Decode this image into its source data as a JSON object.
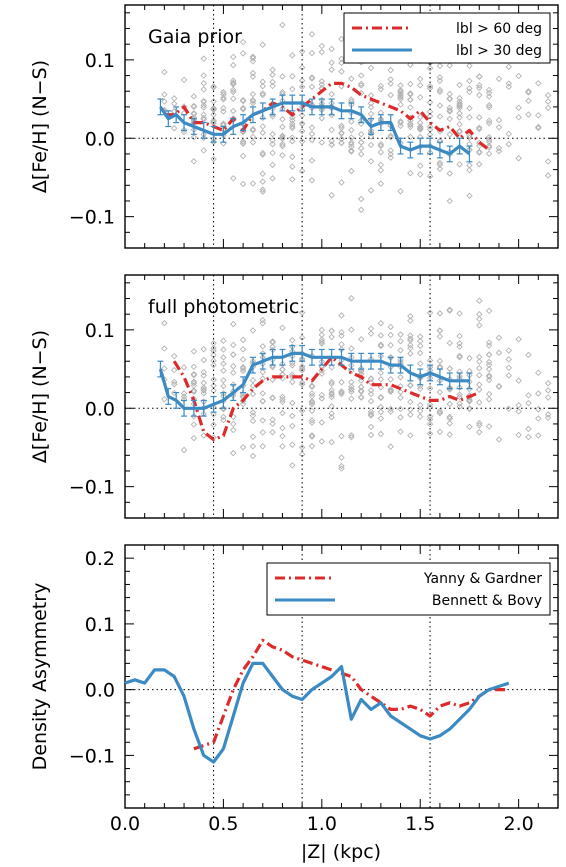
{
  "colors": {
    "red": "#dd2b2b",
    "blue": "#3b8ac4",
    "gray": "#b3b3b3",
    "black": "#000000"
  },
  "xaxis": {
    "label": "|Z| (kpc)",
    "lim": [
      0.0,
      2.2
    ],
    "ticks": [
      "0.0",
      "0.5",
      "1.0",
      "1.5",
      "2.0"
    ],
    "tick_values": [
      0.0,
      0.5,
      1.0,
      1.5,
      2.0
    ]
  },
  "vlines": [
    0.45,
    0.9,
    1.55
  ],
  "chart_data": [
    {
      "type": "line",
      "title": "",
      "label": "Gaia prior",
      "xlabel": "|Z| (kpc)",
      "ylabel": "Δ[Fe/H] (N−S)",
      "xlim": [
        0.0,
        2.2
      ],
      "ylim": [
        -0.14,
        0.17
      ],
      "yticks": [
        "0.1",
        "0.0",
        "−0.1"
      ],
      "ytick_values": [
        0.1,
        0.0,
        -0.1
      ],
      "legend": {
        "placement": "top-right",
        "entries": [
          "lbl > 60 deg",
          "lbl > 30 deg"
        ]
      },
      "series": [
        {
          "name": "lbl > 60 deg",
          "style": "dashdot",
          "color": "red",
          "x": [
            0.2,
            0.25,
            0.3,
            0.35,
            0.4,
            0.45,
            0.5,
            0.55,
            0.6,
            0.65,
            0.7,
            0.75,
            0.8,
            0.85,
            0.9,
            0.95,
            1.0,
            1.05,
            1.1,
            1.15,
            1.2,
            1.25,
            1.3,
            1.35,
            1.4,
            1.45,
            1.5,
            1.55,
            1.6,
            1.65,
            1.7,
            1.75,
            1.8,
            1.85
          ],
          "y": [
            0.03,
            0.03,
            0.04,
            0.02,
            0.02,
            0.015,
            0.01,
            0.025,
            0.01,
            0.03,
            0.035,
            0.045,
            0.04,
            0.03,
            0.04,
            0.05,
            0.06,
            0.07,
            0.07,
            0.065,
            0.055,
            0.05,
            0.045,
            0.04,
            0.035,
            0.025,
            0.035,
            0.02,
            0.01,
            0.015,
            0.0,
            0.01,
            -0.005,
            -0.015
          ]
        },
        {
          "name": "lbl > 30 deg",
          "style": "solid",
          "color": "blue",
          "x": [
            0.18,
            0.22,
            0.26,
            0.3,
            0.35,
            0.4,
            0.45,
            0.5,
            0.55,
            0.6,
            0.65,
            0.7,
            0.75,
            0.8,
            0.85,
            0.9,
            0.95,
            1.0,
            1.05,
            1.1,
            1.15,
            1.2,
            1.25,
            1.3,
            1.35,
            1.4,
            1.45,
            1.5,
            1.55,
            1.6,
            1.65,
            1.7,
            1.75
          ],
          "y": [
            0.04,
            0.025,
            0.03,
            0.02,
            0.015,
            0.01,
            0.005,
            0.005,
            0.015,
            0.02,
            0.03,
            0.035,
            0.04,
            0.045,
            0.045,
            0.045,
            0.04,
            0.04,
            0.04,
            0.035,
            0.035,
            0.03,
            0.015,
            0.02,
            0.02,
            -0.01,
            -0.015,
            -0.01,
            -0.01,
            -0.015,
            -0.02,
            -0.01,
            -0.02
          ],
          "error": 0.01
        }
      ]
    },
    {
      "type": "line",
      "title": "",
      "label": "full photometric",
      "xlabel": "|Z| (kpc)",
      "ylabel": "Δ[Fe/H] (N−S)",
      "xlim": [
        0.0,
        2.2
      ],
      "ylim": [
        -0.14,
        0.17
      ],
      "yticks": [
        "0.1",
        "0.0",
        "−0.1"
      ],
      "ytick_values": [
        0.1,
        0.0,
        -0.1
      ],
      "series": [
        {
          "name": "lbl > 60 deg",
          "style": "dashdot",
          "color": "red",
          "x": [
            0.25,
            0.3,
            0.35,
            0.4,
            0.45,
            0.5,
            0.55,
            0.6,
            0.65,
            0.7,
            0.75,
            0.8,
            0.85,
            0.9,
            0.95,
            1.0,
            1.05,
            1.1,
            1.15,
            1.2,
            1.25,
            1.3,
            1.35,
            1.4,
            1.45,
            1.5,
            1.55,
            1.6,
            1.65,
            1.7,
            1.75,
            1.8
          ],
          "y": [
            0.06,
            0.04,
            0.01,
            -0.03,
            -0.04,
            -0.035,
            0.0,
            0.01,
            0.025,
            0.035,
            0.04,
            0.04,
            0.04,
            0.04,
            0.035,
            0.05,
            0.065,
            0.055,
            0.045,
            0.04,
            0.03,
            0.03,
            0.03,
            0.025,
            0.02,
            0.015,
            0.01,
            0.01,
            0.015,
            0.01,
            0.015,
            0.02
          ]
        },
        {
          "name": "lbl > 30 deg",
          "style": "solid",
          "color": "blue",
          "x": [
            0.18,
            0.22,
            0.26,
            0.3,
            0.35,
            0.4,
            0.45,
            0.5,
            0.55,
            0.6,
            0.65,
            0.7,
            0.75,
            0.8,
            0.85,
            0.9,
            0.95,
            1.0,
            1.05,
            1.1,
            1.15,
            1.2,
            1.25,
            1.3,
            1.35,
            1.4,
            1.45,
            1.5,
            1.55,
            1.6,
            1.65,
            1.7,
            1.75
          ],
          "y": [
            0.05,
            0.015,
            0.01,
            0.0,
            0.0,
            0.0,
            0.005,
            0.01,
            0.02,
            0.03,
            0.055,
            0.06,
            0.065,
            0.065,
            0.07,
            0.07,
            0.065,
            0.065,
            0.065,
            0.065,
            0.06,
            0.06,
            0.06,
            0.06,
            0.055,
            0.055,
            0.045,
            0.04,
            0.045,
            0.04,
            0.035,
            0.035,
            0.035
          ],
          "error": 0.01
        }
      ]
    },
    {
      "type": "line",
      "title": "",
      "xlabel": "|Z| (kpc)",
      "ylabel": "Density Asymmetry",
      "xlim": [
        0.0,
        2.2
      ],
      "ylim": [
        -0.18,
        0.22
      ],
      "yticks": [
        "0.2",
        "0.1",
        "0.0",
        "−0.1"
      ],
      "ytick_values": [
        0.2,
        0.1,
        0.0,
        -0.1
      ],
      "legend": {
        "placement": "top-right",
        "entries": [
          "Yanny & Gardner",
          "Bennett & Bovy"
        ]
      },
      "series": [
        {
          "name": "Yanny & Gardner",
          "style": "dashdot",
          "color": "red",
          "x": [
            0.35,
            0.4,
            0.45,
            0.5,
            0.55,
            0.6,
            0.65,
            0.7,
            0.75,
            0.8,
            0.85,
            0.9,
            0.95,
            1.0,
            1.05,
            1.1,
            1.15,
            1.2,
            1.25,
            1.3,
            1.35,
            1.4,
            1.45,
            1.5,
            1.55,
            1.6,
            1.65,
            1.7,
            1.75,
            1.8,
            1.85,
            1.9,
            1.95
          ],
          "y": [
            -0.09,
            -0.085,
            -0.08,
            -0.04,
            0.0,
            0.03,
            0.05,
            0.075,
            0.065,
            0.06,
            0.05,
            0.045,
            0.04,
            0.035,
            0.03,
            0.025,
            0.02,
            0.0,
            -0.01,
            -0.02,
            -0.03,
            -0.03,
            -0.025,
            -0.03,
            -0.04,
            -0.025,
            -0.02,
            -0.025,
            -0.02,
            -0.01,
            0.0,
            0.0,
            0.0
          ]
        },
        {
          "name": "Bennett & Bovy",
          "style": "solid",
          "color": "blue",
          "x": [
            0.0,
            0.05,
            0.1,
            0.15,
            0.2,
            0.25,
            0.3,
            0.35,
            0.4,
            0.45,
            0.5,
            0.55,
            0.6,
            0.65,
            0.7,
            0.75,
            0.8,
            0.85,
            0.9,
            0.95,
            1.0,
            1.05,
            1.1,
            1.15,
            1.2,
            1.25,
            1.3,
            1.35,
            1.4,
            1.45,
            1.5,
            1.55,
            1.6,
            1.65,
            1.7,
            1.75,
            1.8,
            1.85,
            1.9,
            1.95
          ],
          "y": [
            0.01,
            0.015,
            0.01,
            0.03,
            0.03,
            0.02,
            -0.01,
            -0.06,
            -0.1,
            -0.11,
            -0.09,
            -0.04,
            0.01,
            0.04,
            0.04,
            0.02,
            0.0,
            -0.01,
            -0.015,
            0.0,
            0.01,
            0.02,
            0.035,
            -0.045,
            -0.015,
            -0.03,
            -0.02,
            -0.04,
            -0.05,
            -0.06,
            -0.07,
            -0.075,
            -0.07,
            -0.06,
            -0.045,
            -0.03,
            -0.01,
            0.0,
            0.005,
            0.01
          ]
        }
      ]
    }
  ]
}
